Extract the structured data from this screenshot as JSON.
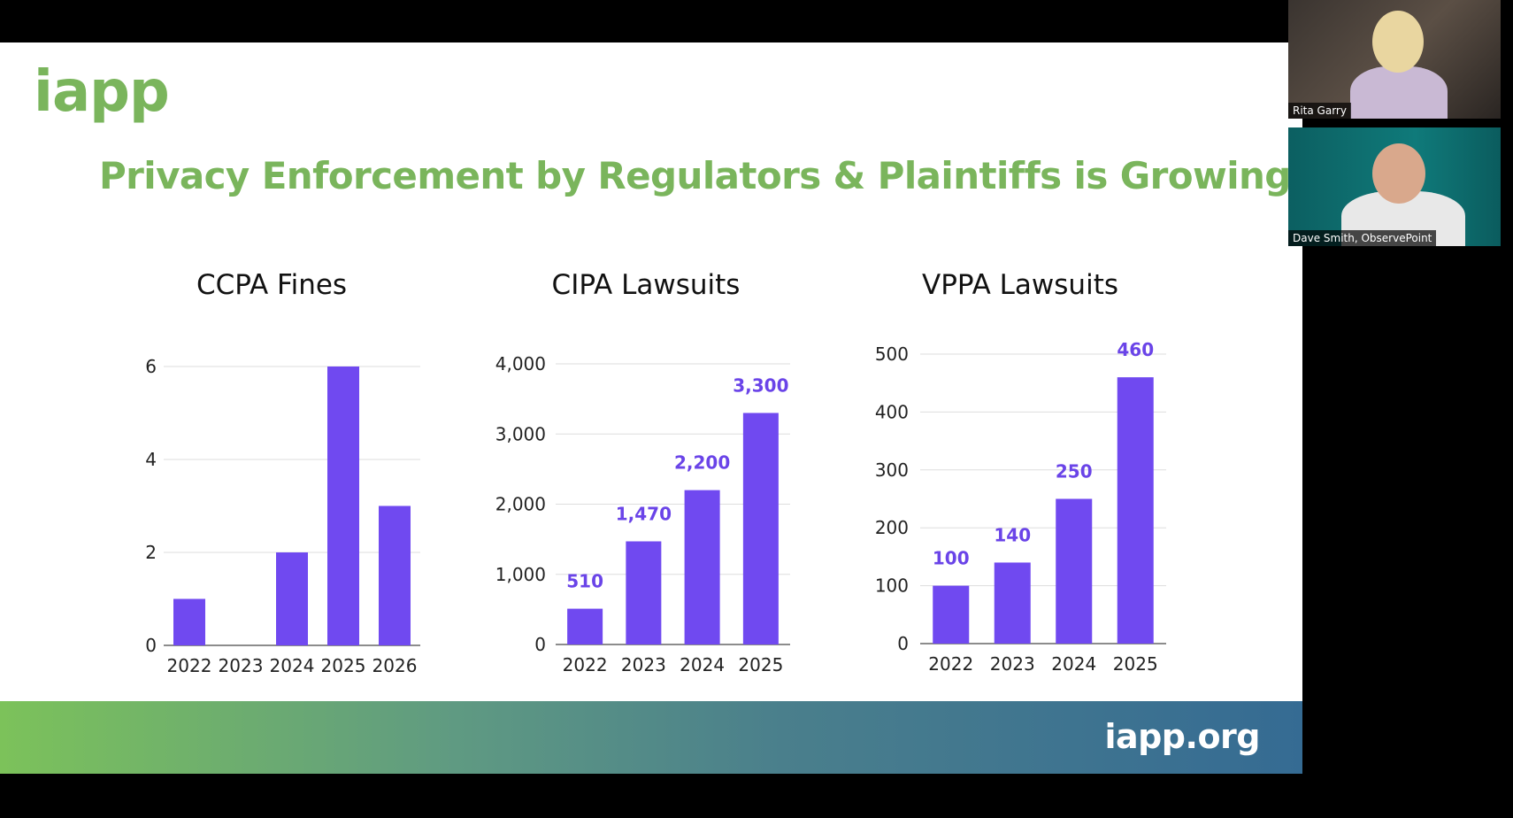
{
  "slide": {
    "logo": "iapp",
    "title": "Privacy Enforcement by Regulators & Plaintiffs is Growing",
    "footer_url": "iapp.org"
  },
  "participants": [
    {
      "name": "Rita Garry"
    },
    {
      "name": "Dave Smith, ObservePoint"
    }
  ],
  "colors": {
    "accent_green": "#7ab55c",
    "bar_purple": "#7049f0",
    "label_purple": "#6a44e8"
  },
  "chart_data": [
    {
      "type": "bar",
      "title": "CCPA Fines",
      "categories": [
        "2022",
        "2023",
        "2024",
        "2025",
        "2026"
      ],
      "values": [
        1,
        0,
        2,
        6,
        3
      ],
      "yticks": [
        "0",
        "2",
        "4",
        "6"
      ],
      "ytick_values": [
        0,
        2,
        4,
        6
      ],
      "ylim": [
        0,
        6
      ],
      "data_labels": [],
      "grid": true
    },
    {
      "type": "bar",
      "title": "CIPA Lawsuits",
      "categories": [
        "2022",
        "2023",
        "2024",
        "2025"
      ],
      "values": [
        510,
        1470,
        2200,
        3300
      ],
      "yticks": [
        "0",
        "1,000",
        "2,000",
        "3,000",
        "4,000"
      ],
      "ytick_values": [
        0,
        1000,
        2000,
        3000,
        4000
      ],
      "ylim": [
        0,
        4000
      ],
      "data_labels": [
        "510",
        "1,470",
        "2,200",
        "3,300"
      ],
      "grid": true
    },
    {
      "type": "bar",
      "title": "VPPA Lawsuits",
      "categories": [
        "2022",
        "2023",
        "2024",
        "2025"
      ],
      "values": [
        100,
        140,
        250,
        460
      ],
      "yticks": [
        "0",
        "100",
        "200",
        "300",
        "400",
        "500"
      ],
      "ytick_values": [
        0,
        100,
        200,
        300,
        400,
        500
      ],
      "ylim": [
        0,
        500
      ],
      "data_labels": [
        "100",
        "140",
        "250",
        "460"
      ],
      "grid": true
    }
  ]
}
